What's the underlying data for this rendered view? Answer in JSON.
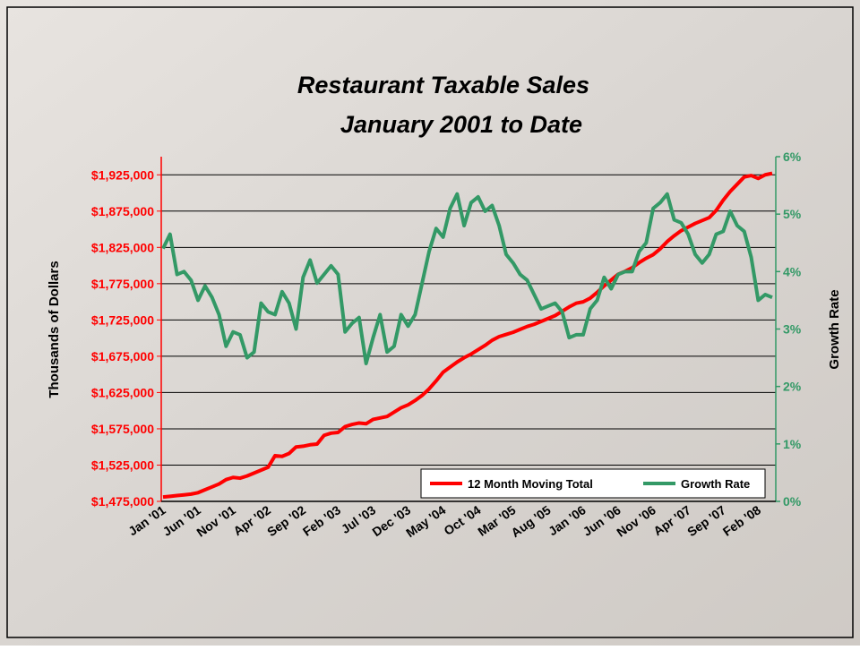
{
  "chart_data": {
    "type": "line",
    "title": "Restaurant Taxable Sales",
    "subtitle": "January 2001 to Date",
    "y_label": "Thousands of Dollars",
    "y2_label": "Growth Rate",
    "categories": [
      "Jan '01",
      null,
      null,
      null,
      null,
      "Jun '01",
      null,
      null,
      null,
      null,
      "Nov '01",
      null,
      null,
      null,
      null,
      "Apr '02",
      null,
      null,
      null,
      null,
      "Sep '02",
      null,
      null,
      null,
      null,
      "Feb '03",
      null,
      null,
      null,
      null,
      "Jul '03",
      null,
      null,
      null,
      null,
      "Dec '03",
      null,
      null,
      null,
      null,
      "May '04",
      null,
      null,
      null,
      null,
      "Oct '04",
      null,
      null,
      null,
      null,
      "Mar '05",
      null,
      null,
      null,
      null,
      "Aug '05",
      null,
      null,
      null,
      null,
      "Jan '06",
      null,
      null,
      null,
      null,
      "Jun '06",
      null,
      null,
      null,
      null,
      "Nov '06",
      null,
      null,
      null,
      null,
      "Apr '07",
      null,
      null,
      null,
      null,
      "Sep '07",
      null,
      null,
      null,
      null,
      "Feb '08",
      null,
      null
    ],
    "series": [
      {
        "name": "12 Month Moving Total",
        "color": "#ff0000",
        "values": [
          1481000,
          1482000,
          1483000,
          1484000,
          1485000,
          1487000,
          1491000,
          1495000,
          1499000,
          1505000,
          1508000,
          1507000,
          1510000,
          1514000,
          1518000,
          1522000,
          1538000,
          1537000,
          1541000,
          1550000,
          1551000,
          1553000,
          1554000,
          1566000,
          1569000,
          1570000,
          1578000,
          1581000,
          1583000,
          1582000,
          1588000,
          1590000,
          1592000,
          1598000,
          1604000,
          1608000,
          1614000,
          1621000,
          1630000,
          1641000,
          1653000,
          1660000,
          1667000,
          1673000,
          1678000,
          1684000,
          1690000,
          1697000,
          1702000,
          1705000,
          1708000,
          1712000,
          1716000,
          1719000,
          1723000,
          1727000,
          1731000,
          1737000,
          1743000,
          1748000,
          1750000,
          1755000,
          1763000,
          1772000,
          1780000,
          1788000,
          1792000,
          1797000,
          1804000,
          1810000,
          1815000,
          1823000,
          1833000,
          1841000,
          1848000,
          1853000,
          1858000,
          1862000,
          1866000,
          1876000,
          1890000,
          1902000,
          1912000,
          1922000,
          1924000,
          1920000,
          1925000,
          1927000
        ]
      },
      {
        "name": "Growth Rate",
        "color": "#339966",
        "axis": "y2",
        "values": [
          4.4,
          4.65,
          3.95,
          4.0,
          3.85,
          3.5,
          3.75,
          3.55,
          3.25,
          2.7,
          2.95,
          2.9,
          2.5,
          2.6,
          3.45,
          3.3,
          3.25,
          3.65,
          3.45,
          3.0,
          3.9,
          4.2,
          3.8,
          3.95,
          4.1,
          3.95,
          2.95,
          3.1,
          3.2,
          2.4,
          2.85,
          3.25,
          2.6,
          2.7,
          3.25,
          3.05,
          3.25,
          3.8,
          4.35,
          4.75,
          4.6,
          5.1,
          5.35,
          4.8,
          5.2,
          5.3,
          5.05,
          5.15,
          4.8,
          4.3,
          4.15,
          3.95,
          3.85,
          3.6,
          3.35,
          3.4,
          3.45,
          3.3,
          2.85,
          2.9,
          2.9,
          3.35,
          3.5,
          3.9,
          3.7,
          3.95,
          4.0,
          4.0,
          4.35,
          4.5,
          5.1,
          5.2,
          5.35,
          4.9,
          4.85,
          4.65,
          4.3,
          4.15,
          4.3,
          4.65,
          4.7,
          5.05,
          4.8,
          4.7,
          4.25,
          3.5,
          3.6,
          3.55
        ]
      }
    ],
    "ylim": [
      1475000,
      1950000
    ],
    "yticks": [
      {
        "value": 1475000,
        "label": "$1,475,000"
      },
      {
        "value": 1525000,
        "label": "$1,525,000"
      },
      {
        "value": 1575000,
        "label": "$1,575,000"
      },
      {
        "value": 1625000,
        "label": "$1,625,000"
      },
      {
        "value": 1675000,
        "label": "$1,675,000"
      },
      {
        "value": 1725000,
        "label": "$1,725,000"
      },
      {
        "value": 1775000,
        "label": "$1,775,000"
      },
      {
        "value": 1825000,
        "label": "$1,825,000"
      },
      {
        "value": 1875000,
        "label": "$1,875,000"
      },
      {
        "value": 1925000,
        "label": "$1,925,000"
      }
    ],
    "y2lim": [
      0,
      6
    ],
    "y2ticks": [
      {
        "value": 0,
        "label": "0%"
      },
      {
        "value": 1,
        "label": "1%"
      },
      {
        "value": 2,
        "label": "2%"
      },
      {
        "value": 3,
        "label": "3%"
      },
      {
        "value": 4,
        "label": "4%"
      },
      {
        "value": 5,
        "label": "5%"
      },
      {
        "value": 6,
        "label": "6%"
      }
    ],
    "grid": true,
    "legend": "bottom-right"
  }
}
